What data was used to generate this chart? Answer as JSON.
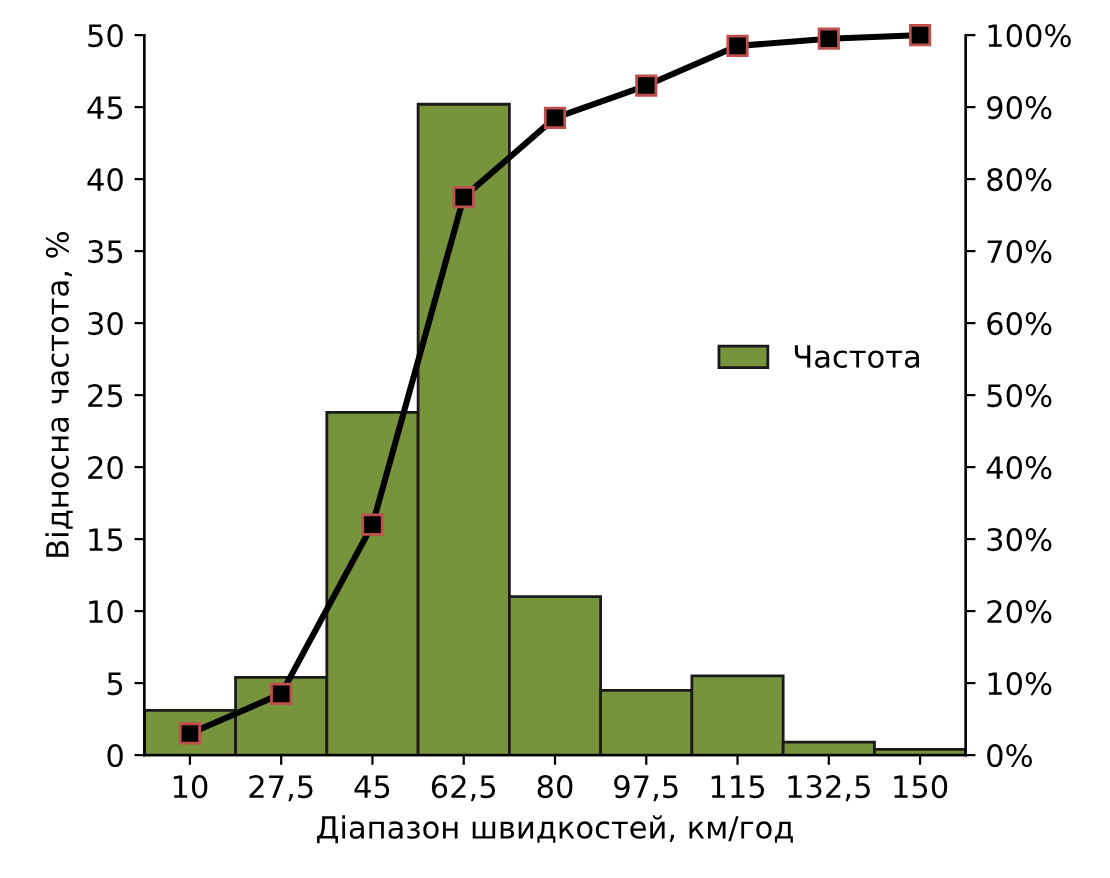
{
  "chart_data": {
    "type": "bar",
    "xlabel": "Діапазон швидкостей, км/год",
    "ylabel": "Відносна частота, %",
    "categories": [
      "10",
      "27,5",
      "45",
      "62,5",
      "80",
      "97,5",
      "115",
      "132,5",
      "150"
    ],
    "series": [
      {
        "name": "Частота",
        "color": "#77933c",
        "values": [
          3.1,
          5.4,
          23.8,
          45.2,
          11.0,
          4.5,
          5.5,
          0.9,
          0.4
        ]
      },
      {
        "type": "line",
        "axis": "y2",
        "color": "#000000",
        "marker": "square",
        "values": [
          3,
          8.5,
          32,
          77.5,
          88.5,
          93,
          98.5,
          99.5,
          100
        ]
      }
    ],
    "ylim": [
      0,
      50
    ],
    "yticks": [
      0,
      5,
      10,
      15,
      20,
      25,
      30,
      35,
      40,
      45,
      50
    ],
    "y2lim": [
      0,
      100
    ],
    "y2ticks": [
      {
        "value": 0,
        "label": "0%"
      },
      {
        "value": 10,
        "label": "10%"
      },
      {
        "value": 20,
        "label": "20%"
      },
      {
        "value": 30,
        "label": "30%"
      },
      {
        "value": 40,
        "label": "40%"
      },
      {
        "value": 50,
        "label": "50%"
      },
      {
        "value": 60,
        "label": "60%"
      },
      {
        "value": 70,
        "label": "70%"
      },
      {
        "value": 80,
        "label": "80%"
      },
      {
        "value": 90,
        "label": "90%"
      },
      {
        "value": 100,
        "label": "100%"
      }
    ],
    "legend": "right",
    "grid": false
  }
}
